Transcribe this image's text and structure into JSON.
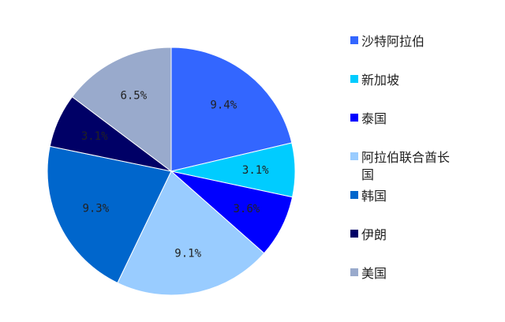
{
  "chart_data": {
    "type": "pie",
    "categories": [
      "沙特阿拉伯",
      "新加坡",
      "泰国",
      "阿拉伯联合酋长国",
      "韩国",
      "伊朗",
      "美国"
    ],
    "values": [
      9.4,
      3.1,
      3.6,
      9.1,
      9.3,
      3.1,
      6.5
    ],
    "value_labels": [
      "9.4%",
      "3.1%",
      "3.6%",
      "9.1%",
      "9.3%",
      "3.1%",
      "6.5%"
    ],
    "colors": [
      "#3366ff",
      "#00ccff",
      "#0000ff",
      "#99ccff",
      "#0066cc",
      "#000066",
      "#99aacc"
    ],
    "legend": "right"
  }
}
